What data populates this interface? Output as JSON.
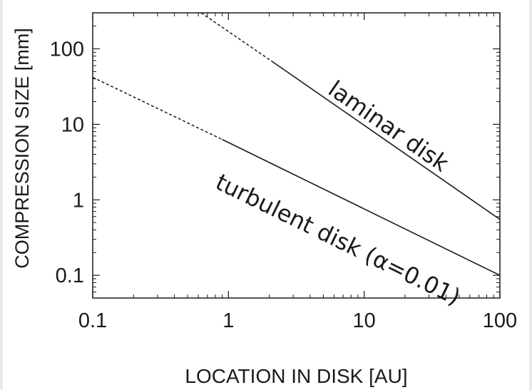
{
  "chart_data": {
    "type": "line",
    "xlabel": "LOCATION IN DISK  [AU]",
    "ylabel": "COMPRESSION SIZE  [mm]",
    "x_scale": "log",
    "y_scale": "log",
    "xlim": [
      0.1,
      100
    ],
    "ylim": [
      0.05,
      300
    ],
    "xticks": [
      {
        "value": 0.1,
        "label": "0.1"
      },
      {
        "value": 1,
        "label": "1"
      },
      {
        "value": 10,
        "label": "10"
      },
      {
        "value": 100,
        "label": "100"
      }
    ],
    "yticks": [
      {
        "value": 0.1,
        "label": "0.1"
      },
      {
        "value": 1,
        "label": "1"
      },
      {
        "value": 10,
        "label": "10"
      },
      {
        "value": 100,
        "label": "100"
      }
    ],
    "grid": false,
    "series": [
      {
        "name": "laminar disk",
        "color": "#1a1a1a",
        "dashed_segment": [
          [
            0.63,
            300
          ],
          [
            2.1,
            68
          ]
        ],
        "solid_segment": [
          [
            2.1,
            68
          ],
          [
            100,
            0.55
          ]
        ]
      },
      {
        "name": "turbulent disk (α=0.01)",
        "color": "#1a1a1a",
        "dashed_segment": [
          [
            0.1,
            42
          ],
          [
            0.9,
            6.3
          ]
        ],
        "solid_segment": [
          [
            0.9,
            6.3
          ],
          [
            100,
            0.1
          ]
        ]
      }
    ],
    "annotations": [
      {
        "text": "laminar disk",
        "series": "laminar disk"
      },
      {
        "text": "turbulent disk (α=0.01)",
        "series": "turbulent disk (α=0.01)"
      }
    ]
  }
}
